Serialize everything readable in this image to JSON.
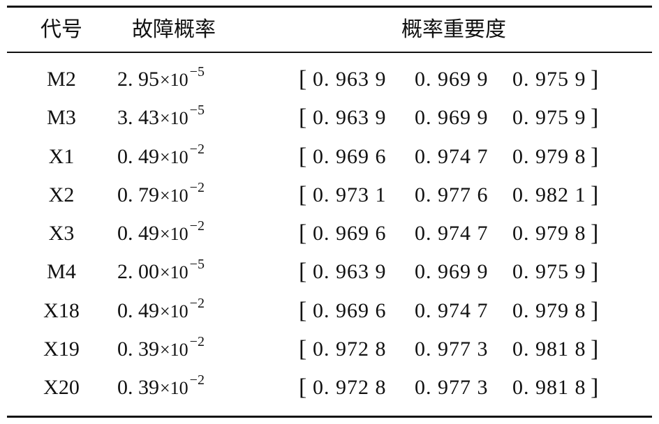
{
  "table": {
    "headers": {
      "code": "代号",
      "failure_rate": "故障概率",
      "importance": "概率重要度"
    },
    "rows": [
      {
        "code": "M2",
        "rate_mantissa": "2. 95",
        "rate_times": "×10",
        "rate_exponent": "−5",
        "importance": [
          "0. 963 9",
          "0. 969 9",
          "0. 975 9"
        ]
      },
      {
        "code": "M3",
        "rate_mantissa": "3. 43",
        "rate_times": "×10",
        "rate_exponent": "−5",
        "importance": [
          "0. 963 9",
          "0. 969 9",
          "0. 975 9"
        ]
      },
      {
        "code": "X1",
        "rate_mantissa": "0. 49",
        "rate_times": "×10",
        "rate_exponent": "−2",
        "importance": [
          "0. 969 6",
          "0. 974 7",
          "0. 979 8"
        ]
      },
      {
        "code": "X2",
        "rate_mantissa": "0. 79",
        "rate_times": "×10",
        "rate_exponent": "−2",
        "importance": [
          "0. 973 1",
          "0. 977 6",
          "0. 982 1"
        ]
      },
      {
        "code": "X3",
        "rate_mantissa": "0. 49",
        "rate_times": "×10",
        "rate_exponent": "−2",
        "importance": [
          "0. 969 6",
          "0. 974 7",
          "0. 979 8"
        ]
      },
      {
        "code": "M4",
        "rate_mantissa": "2. 00",
        "rate_times": "×10",
        "rate_exponent": "−5",
        "importance": [
          "0. 963 9",
          "0. 969 9",
          "0. 975 9"
        ]
      },
      {
        "code": "X18",
        "rate_mantissa": "0. 49",
        "rate_times": "×10",
        "rate_exponent": "−2",
        "importance": [
          "0. 969 6",
          "0. 974 7",
          "0. 979 8"
        ]
      },
      {
        "code": "X19",
        "rate_mantissa": "0. 39",
        "rate_times": "×10",
        "rate_exponent": "−2",
        "importance": [
          "0. 972 8",
          "0. 977 3",
          "0. 981 8"
        ]
      },
      {
        "code": "X20",
        "rate_mantissa": "0. 39",
        "rate_times": "×10",
        "rate_exponent": "−2",
        "importance": [
          "0. 972 8",
          "0. 977 3",
          "0. 981 8"
        ]
      }
    ],
    "bracket_open": "[",
    "bracket_close": "]"
  }
}
